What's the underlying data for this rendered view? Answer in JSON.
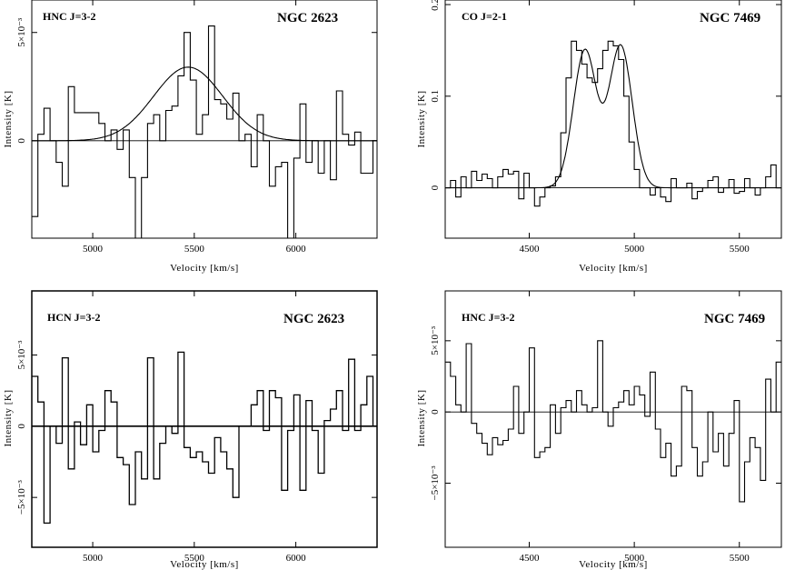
{
  "figure": {
    "panels": [
      {
        "line_label": "HNC J=3-2",
        "galaxy_label": "NGC 2623"
      },
      {
        "line_label": "CO J=2-1",
        "galaxy_label": "NGC 7469"
      },
      {
        "line_label": "HCN J=3-2",
        "galaxy_label": "NGC 2623"
      },
      {
        "line_label": "HNC J=3-2",
        "galaxy_label": "NGC 7469"
      }
    ]
  },
  "chart_data": [
    {
      "type": "line",
      "title": "NGC 2623",
      "line_label": "HNC J=3-2",
      "xlabel": "Velocity  [km/s]",
      "ylabel": "Intensity [K]",
      "xlim": [
        4700,
        6400
      ],
      "ylim": [
        -0.0045,
        0.0065
      ],
      "xticks": [
        {
          "v": 5000,
          "label": "5000"
        },
        {
          "v": 5500,
          "label": "5500"
        },
        {
          "v": 6000,
          "label": "6000"
        }
      ],
      "yticks": [
        {
          "v": 0,
          "label": "0"
        },
        {
          "v": 0.005,
          "label": "5×10⁻³"
        }
      ],
      "grid": false,
      "series": [
        {
          "style": "step",
          "x": [
            4700,
            4730,
            4760,
            4790,
            4820,
            4850,
            4880,
            4910,
            4940,
            4970,
            5000,
            5030,
            5060,
            5090,
            5120,
            5150,
            5180,
            5210,
            5240,
            5270,
            5300,
            5330,
            5360,
            5390,
            5420,
            5450,
            5480,
            5510,
            5540,
            5570,
            5600,
            5630,
            5660,
            5690,
            5720,
            5750,
            5780,
            5810,
            5840,
            5870,
            5900,
            5930,
            5960,
            5990,
            6020,
            6050,
            6080,
            6110,
            6140,
            6170,
            6200,
            6230,
            6260,
            6290,
            6320,
            6350,
            6380
          ],
          "y": [
            -0.0035,
            0.0003,
            0.0015,
            0.0,
            -0.001,
            -0.0021,
            0.0025,
            0.0013,
            0.0013,
            0.0013,
            0.0013,
            0.0008,
            0.0,
            0.0005,
            -0.0004,
            0.0005,
            -0.0017,
            -0.0045,
            -0.0017,
            0.0008,
            0.0012,
            0.0,
            0.0014,
            0.0016,
            0.003,
            0.005,
            0.0028,
            0.0003,
            0.0012,
            0.0053,
            0.0019,
            0.0017,
            0.001,
            0.0022,
            0.0,
            0.0003,
            -0.0012,
            0.0012,
            0.0,
            -0.0021,
            -0.0012,
            -0.001,
            -0.0045,
            -0.0008,
            0.0017,
            -0.001,
            0.0,
            -0.0015,
            0.0,
            -0.0018,
            0.0023,
            0.0003,
            -0.0002,
            0.0004,
            -0.0015,
            -0.0015,
            0.0
          ]
        },
        {
          "style": "gaussian",
          "amplitude": 0.0034,
          "center": 5470,
          "sigma": 170
        }
      ]
    },
    {
      "type": "line",
      "title": "NGC 7469",
      "line_label": "CO J=2-1",
      "xlabel": "Velocity  [km/s]",
      "ylabel": "Intensity [K]",
      "xlim": [
        4100,
        5700
      ],
      "ylim": [
        -0.055,
        0.205
      ],
      "xticks": [
        {
          "v": 4500,
          "label": "4500"
        },
        {
          "v": 5000,
          "label": "5000"
        },
        {
          "v": 5500,
          "label": "5500"
        }
      ],
      "yticks": [
        {
          "v": 0,
          "label": "0"
        },
        {
          "v": 0.1,
          "label": "0.1"
        },
        {
          "v": 0.2,
          "label": "0.2"
        }
      ],
      "grid": false,
      "series": [
        {
          "style": "step",
          "x": [
            4100,
            4125,
            4150,
            4175,
            4200,
            4225,
            4250,
            4275,
            4300,
            4325,
            4350,
            4375,
            4400,
            4425,
            4450,
            4475,
            4500,
            4525,
            4550,
            4575,
            4600,
            4625,
            4650,
            4675,
            4700,
            4725,
            4750,
            4775,
            4800,
            4825,
            4850,
            4875,
            4900,
            4925,
            4950,
            4975,
            5000,
            5025,
            5050,
            5075,
            5100,
            5125,
            5150,
            5175,
            5200,
            5225,
            5250,
            5275,
            5300,
            5325,
            5350,
            5375,
            5400,
            5425,
            5450,
            5475,
            5500,
            5525,
            5550,
            5575,
            5600,
            5625,
            5650,
            5675
          ],
          "y": [
            0.0,
            0.008,
            -0.01,
            0.012,
            0.0,
            0.018,
            0.008,
            0.015,
            0.01,
            0.0,
            0.012,
            0.02,
            0.015,
            0.018,
            -0.012,
            0.016,
            0.0,
            -0.02,
            -0.01,
            0.0,
            0.002,
            0.012,
            0.06,
            0.12,
            0.16,
            0.15,
            0.135,
            0.12,
            0.115,
            0.13,
            0.15,
            0.16,
            0.155,
            0.14,
            0.1,
            0.05,
            0.02,
            0.0,
            0.0,
            -0.008,
            0.0,
            -0.01,
            -0.015,
            0.01,
            0.0,
            0.0,
            0.005,
            -0.012,
            -0.004,
            0.0,
            0.008,
            0.012,
            -0.005,
            0.0,
            0.009,
            -0.006,
            -0.004,
            0.01,
            0.0,
            -0.008,
            0.0,
            0.012,
            0.025,
            0.0
          ]
        },
        {
          "style": "double-gaussian",
          "amplitude1": 0.15,
          "center1": 4765,
          "sigma1": 55,
          "amplitude2": 0.155,
          "center2": 4935,
          "sigma2": 55
        }
      ]
    },
    {
      "type": "line",
      "title": "NGC 2623",
      "line_label": "HCN J=3-2",
      "xlabel": "Velocity  [km/s]",
      "ylabel": "Intensity [K]",
      "xlim": [
        4700,
        6400
      ],
      "ylim": [
        -0.0085,
        0.0095
      ],
      "xticks": [
        {
          "v": 5000,
          "label": "5000"
        },
        {
          "v": 5500,
          "label": "5500"
        },
        {
          "v": 6000,
          "label": "6000"
        }
      ],
      "yticks": [
        {
          "v": -0.005,
          "label": "−5×10⁻³"
        },
        {
          "v": 0,
          "label": "0"
        },
        {
          "v": 0.005,
          "label": "5×10⁻³"
        }
      ],
      "grid": false,
      "series": [
        {
          "style": "step",
          "x": [
            4700,
            4730,
            4760,
            4790,
            4820,
            4850,
            4880,
            4910,
            4940,
            4970,
            5000,
            5030,
            5060,
            5090,
            5120,
            5150,
            5180,
            5210,
            5240,
            5270,
            5300,
            5330,
            5360,
            5390,
            5420,
            5450,
            5480,
            5510,
            5540,
            5570,
            5600,
            5630,
            5660,
            5690,
            5720,
            5750,
            5780,
            5810,
            5840,
            5870,
            5900,
            5930,
            5960,
            5990,
            6020,
            6050,
            6080,
            6110,
            6140,
            6170,
            6200,
            6230,
            6260,
            6290,
            6320,
            6350,
            6380
          ],
          "y": [
            0.0035,
            0.0017,
            -0.0068,
            0.0,
            -0.0012,
            0.0048,
            -0.003,
            0.0003,
            -0.0013,
            0.0015,
            -0.0018,
            -0.0003,
            0.0025,
            0.0017,
            -0.0022,
            -0.0027,
            -0.0055,
            -0.0018,
            -0.0037,
            0.0048,
            -0.0037,
            -0.0012,
            0.0,
            -0.0005,
            0.0052,
            -0.0015,
            -0.0022,
            -0.0018,
            -0.0025,
            -0.0033,
            -0.0008,
            -0.0018,
            -0.003,
            -0.005,
            0.0,
            0.0,
            0.0015,
            0.0025,
            -0.0003,
            0.0025,
            0.002,
            -0.0045,
            -0.0003,
            0.0022,
            -0.0045,
            0.0018,
            -0.0003,
            -0.0033,
            0.0004,
            0.0012,
            0.0025,
            -0.0003,
            0.0047,
            -0.0003,
            0.0015,
            0.0035,
            0.0
          ]
        }
      ]
    },
    {
      "type": "line",
      "title": "NGC 7469",
      "line_label": "HNC J=3-2",
      "xlabel": "Velocity  [km/s]",
      "ylabel": "Intensity [K]",
      "xlim": [
        4100,
        5700
      ],
      "ylim": [
        -0.0095,
        0.0085
      ],
      "xticks": [
        {
          "v": 4500,
          "label": "4500"
        },
        {
          "v": 5000,
          "label": "5000"
        },
        {
          "v": 5500,
          "label": "5500"
        }
      ],
      "yticks": [
        {
          "v": -0.005,
          "label": "−5×10⁻³"
        },
        {
          "v": 0,
          "label": "0"
        },
        {
          "v": 0.005,
          "label": "5×10⁻³"
        }
      ],
      "grid": false,
      "series": [
        {
          "style": "step",
          "x": [
            4100,
            4125,
            4150,
            4175,
            4200,
            4225,
            4250,
            4275,
            4300,
            4325,
            4350,
            4375,
            4400,
            4425,
            4450,
            4475,
            4500,
            4525,
            4550,
            4575,
            4600,
            4625,
            4650,
            4675,
            4700,
            4725,
            4750,
            4775,
            4800,
            4825,
            4850,
            4875,
            4900,
            4925,
            4950,
            4975,
            5000,
            5025,
            5050,
            5075,
            5100,
            5125,
            5150,
            5175,
            5200,
            5225,
            5250,
            5275,
            5300,
            5325,
            5350,
            5375,
            5400,
            5425,
            5450,
            5475,
            5500,
            5525,
            5550,
            5575,
            5600,
            5625,
            5650,
            5675
          ],
          "y": [
            0.0035,
            0.0025,
            0.0005,
            0.0,
            0.0048,
            -0.0008,
            -0.0015,
            -0.0022,
            -0.003,
            -0.0018,
            -0.0023,
            -0.002,
            -0.0012,
            0.0018,
            -0.0015,
            0.0,
            0.0045,
            -0.0032,
            -0.0028,
            -0.0025,
            0.0005,
            -0.0015,
            0.0003,
            0.0008,
            0.0,
            0.0015,
            0.0005,
            0.0,
            0.0003,
            0.005,
            0.0,
            -0.001,
            0.0003,
            0.0007,
            0.0015,
            0.0005,
            0.0018,
            0.0012,
            -0.0003,
            0.0028,
            -0.0012,
            -0.0032,
            -0.0022,
            -0.0045,
            -0.0038,
            0.0018,
            0.0015,
            -0.0025,
            -0.0045,
            -0.0035,
            0.0,
            -0.0028,
            -0.0015,
            -0.0038,
            -0.0015,
            0.0008,
            -0.0063,
            -0.0035,
            -0.0018,
            -0.0025,
            -0.0048,
            0.0023,
            0.0,
            0.0035
          ]
        }
      ]
    }
  ]
}
